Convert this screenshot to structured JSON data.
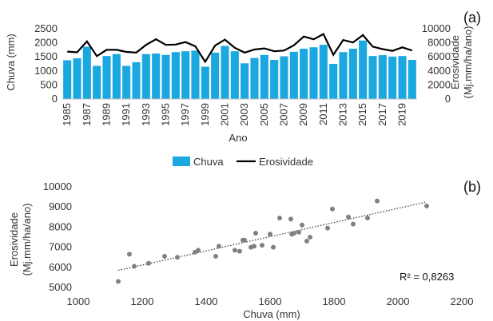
{
  "chart_data": [
    {
      "type": "bar",
      "panel_label": "(a)",
      "categories": [
        "1985",
        "1986",
        "1987",
        "1988",
        "1989",
        "1990",
        "1991",
        "1992",
        "1993",
        "1994",
        "1995",
        "1996",
        "1997",
        "1998",
        "1999",
        "2000",
        "2001",
        "2002",
        "2003",
        "2004",
        "2005",
        "2006",
        "2007",
        "2008",
        "2009",
        "2010",
        "2011",
        "2012",
        "2013",
        "2014",
        "2015",
        "2016",
        "2017",
        "2018",
        "2019",
        "2020"
      ],
      "x_tick_labels": [
        "1985",
        "1987",
        "1989",
        "1991",
        "1993",
        "1995",
        "1997",
        "1999",
        "2001",
        "2003",
        "2005",
        "2007",
        "2009",
        "2011",
        "2013",
        "2015",
        "2017",
        "2019"
      ],
      "series": [
        {
          "name": "Chuva",
          "axis": "left",
          "color": "#1BA8E0",
          "values": [
            1380,
            1450,
            1860,
            1180,
            1530,
            1600,
            1180,
            1310,
            1600,
            1620,
            1570,
            1670,
            1700,
            1720,
            1150,
            1650,
            1890,
            1700,
            1270,
            1460,
            1570,
            1390,
            1520,
            1680,
            1790,
            1840,
            1930,
            1250,
            1670,
            1790,
            2080,
            1530,
            1560,
            1510,
            1530,
            1390
          ]
        },
        {
          "name": "Erosividade",
          "axis": "right",
          "color": "#000000",
          "values": [
            6750,
            6650,
            8200,
            6100,
            7000,
            7000,
            6700,
            6600,
            7700,
            8500,
            7700,
            7750,
            8100,
            7500,
            5300,
            7600,
            8450,
            7300,
            6600,
            7050,
            7200,
            6800,
            6900,
            7650,
            8900,
            8500,
            9250,
            6300,
            8400,
            8050,
            9100,
            7450,
            7100,
            6850,
            7350,
            6900
          ]
        }
      ],
      "xlabel": "Ano",
      "ylabel": "Chuva (mm)",
      "y2label_line1": "Erosividade",
      "y2label_line2": "(Mj.mm/ha/ano)",
      "ylim": [
        0,
        2500
      ],
      "y_ticks": [
        0,
        500,
        1000,
        1500,
        2000,
        2500
      ],
      "y2lim": [
        0,
        10000
      ],
      "y2_ticks": [
        0,
        2000,
        4000,
        6000,
        8000,
        10000
      ],
      "legend": "bottom",
      "grid": false
    },
    {
      "type": "scatter",
      "panel_label": "(b)",
      "x": [
        1125,
        1160,
        1175,
        1220,
        1270,
        1310,
        1365,
        1375,
        1430,
        1440,
        1490,
        1505,
        1515,
        1520,
        1540,
        1550,
        1555,
        1575,
        1600,
        1610,
        1630,
        1665,
        1668,
        1675,
        1690,
        1700,
        1715,
        1725,
        1780,
        1795,
        1845,
        1860,
        1905,
        1935,
        2090
      ],
      "y": [
        5300,
        6650,
        6050,
        6200,
        6550,
        6500,
        6750,
        6850,
        6550,
        7050,
        6850,
        6800,
        7350,
        7350,
        7000,
        7050,
        7700,
        7100,
        7650,
        7000,
        8450,
        8400,
        7650,
        7700,
        7750,
        8100,
        7300,
        7500,
        7950,
        8900,
        8500,
        8150,
        8450,
        9300,
        9050
      ],
      "trendline": {
        "x": [
          1125,
          2090
        ],
        "y": [
          5850,
          9250
        ],
        "style": "dotted"
      },
      "annotation": "R² = 0,8263",
      "xlabel": "Chuva (mm)",
      "ylabel_line1": "Erosividade",
      "ylabel_line2": "(Mj.mm/ha/ano)",
      "xlim": [
        1000,
        2200
      ],
      "x_ticks": [
        1000,
        1200,
        1400,
        1600,
        1800,
        2000,
        2200
      ],
      "ylim": [
        5000,
        10000
      ],
      "y_ticks": [
        5000,
        6000,
        7000,
        8000,
        9000,
        10000
      ],
      "point_color": "#808080",
      "grid": false
    }
  ]
}
